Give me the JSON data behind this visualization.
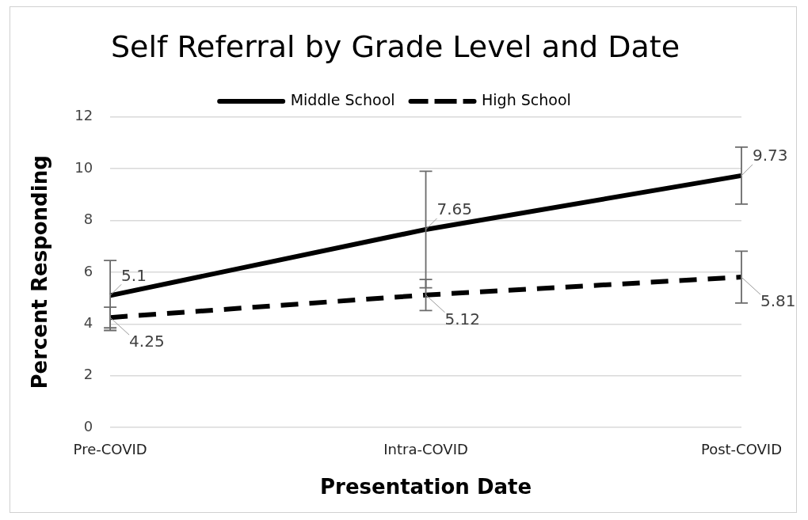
{
  "chart_data": {
    "type": "line",
    "title": "Self Referral by Grade Level and Date",
    "xlabel": "Presentation Date",
    "ylabel": "Percent Responding",
    "categories": [
      "Pre-COVID",
      "Intra-COVID",
      "Post-COVID"
    ],
    "series": [
      {
        "name": "Middle School",
        "color": "#000000",
        "line_style": "solid",
        "values": [
          5.1,
          7.65,
          9.73
        ],
        "errors": [
          1.35,
          2.25,
          1.1
        ]
      },
      {
        "name": "High School",
        "color": "#000000",
        "line_style": "dashed",
        "values": [
          4.25,
          5.12,
          5.81
        ],
        "errors": [
          0.4,
          0.6,
          1.0
        ]
      }
    ],
    "ylim": [
      0,
      12
    ],
    "yticks": [
      0,
      2,
      4,
      6,
      8,
      10,
      12
    ],
    "grid": "y",
    "legend": "top",
    "marker": "none",
    "data_labels": true
  }
}
